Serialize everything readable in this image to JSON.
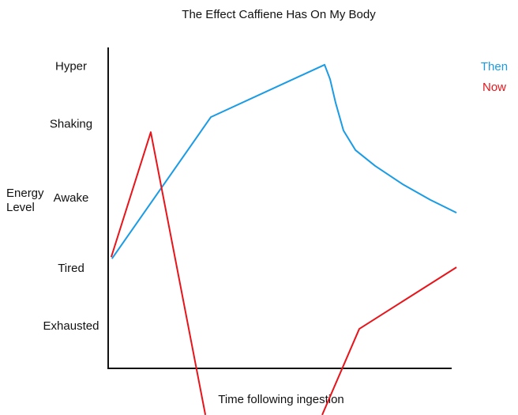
{
  "chart_data": {
    "type": "line",
    "title": "The Effect Caffiene Has On My Body",
    "x_label": "Time following ingestion",
    "y_label": [
      "Energy",
      "Level"
    ],
    "xlim": [
      0,
      100
    ],
    "ylim": [
      0,
      100
    ],
    "yticks": [
      {
        "value": 94,
        "label": "Hyper"
      },
      {
        "value": 76,
        "label": "Shaking"
      },
      {
        "value": 53,
        "label": "Awake"
      },
      {
        "value": 31,
        "label": "Tired"
      },
      {
        "value": 13,
        "label": "Exhausted"
      }
    ],
    "series": [
      {
        "name": "Then",
        "color": "#1a9be6",
        "x": [
          1.1,
          29.9,
          63,
          64.6,
          66.2,
          68.5,
          72,
          77.7,
          85.7,
          93.8,
          101.4
        ],
        "values": [
          34.2,
          78.3,
          94.6,
          90.1,
          82.8,
          74.1,
          68,
          63.1,
          57.4,
          52.5,
          48.5
        ]
      },
      {
        "name": "Now",
        "color": "#e8141a",
        "x": [
          0.9,
          12.4,
          28.3,
          null,
          62.3,
          73.1,
          101.4
        ],
        "values": [
          34.7,
          73.6,
          -14.5,
          null,
          -14.5,
          12.3,
          31.5
        ]
      }
    ]
  }
}
